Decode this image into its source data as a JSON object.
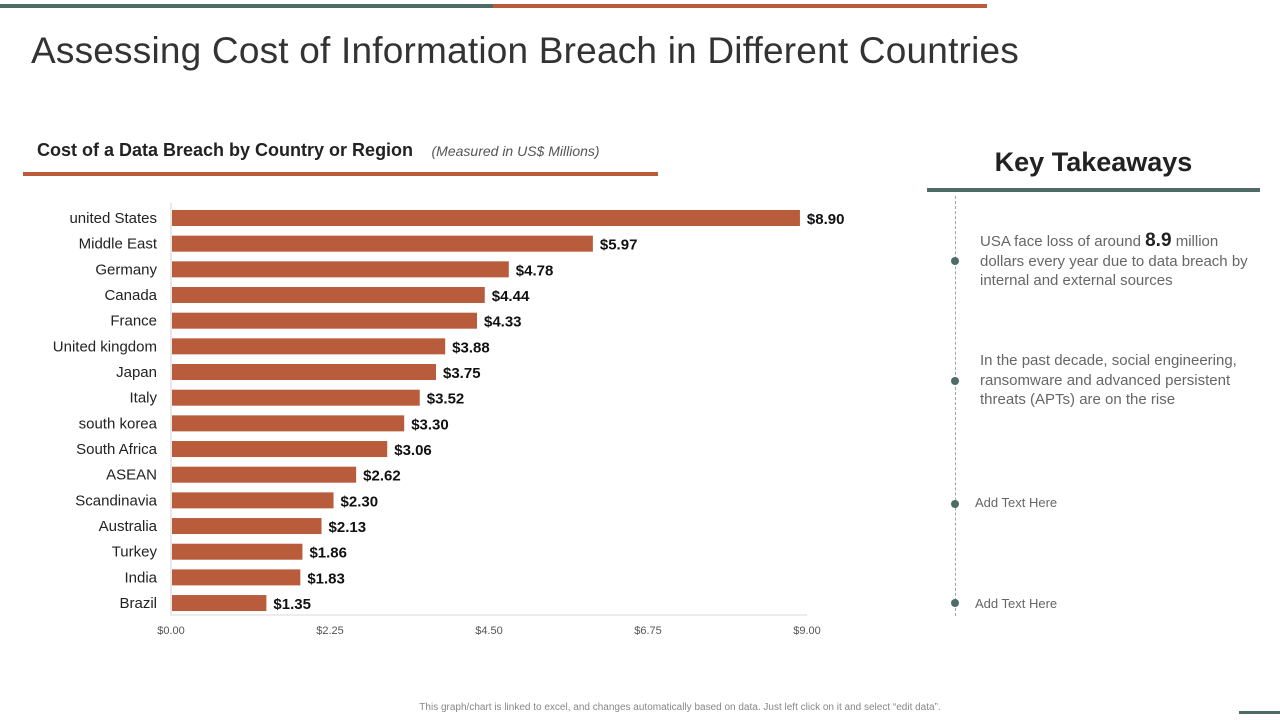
{
  "title": "Assessing Cost of Information Breach in Different Countries",
  "colors": {
    "bar": "#b85c3c",
    "accent_dark": "#4f6b66",
    "accent_orange": "#b85c3c"
  },
  "chart_header": {
    "title": "Cost of a Data Breach by Country or Region",
    "subtitle": "(Measured  in US$ Millions)"
  },
  "chart_data": {
    "type": "bar",
    "orientation": "horizontal",
    "title": "Cost of a Data Breach by Country or Region",
    "subtitle": "(Measured  in US$ Millions)",
    "categories": [
      "united States",
      "Middle East",
      "Germany",
      "Canada",
      "France",
      "United kingdom",
      "Japan",
      "Italy",
      "south korea",
      "South Africa",
      "ASEAN",
      "Scandinavia",
      "Australia",
      "Turkey",
      "India",
      "Brazil"
    ],
    "values": [
      8.9,
      5.97,
      4.78,
      4.44,
      4.33,
      3.88,
      3.75,
      3.52,
      3.3,
      3.06,
      2.62,
      2.3,
      2.13,
      1.86,
      1.83,
      1.35
    ],
    "value_labels": [
      "$8.90",
      "$5.97",
      "$4.78",
      "$4.44",
      "$4.33",
      "$3.88",
      "$3.75",
      "$3.52",
      "$3.30",
      "$3.06",
      "$2.62",
      "$2.30",
      "$2.13",
      "$1.86",
      "$1.83",
      "$1.35"
    ],
    "xlim": [
      0,
      9
    ],
    "xticks": [
      0,
      2.25,
      4.5,
      6.75,
      9
    ],
    "xtick_labels": [
      "$0.00",
      "$2.25",
      "$4.50",
      "$6.75",
      "$9.00"
    ],
    "grid": false
  },
  "key_takeaways": {
    "title": "Key Takeaways",
    "item1": {
      "prefix": "USA face loss of around ",
      "highlight": "8.9",
      "suffix": " million dollars every year due to data breach by internal and external sources"
    },
    "item2": "In the past decade, social engineering, ransomware and advanced persistent threats (APTs) are on the rise",
    "item3": "Add Text Here",
    "item4": "Add Text Here"
  },
  "footnote": "This graph/chart is linked to excel, and changes automatically based on data. Just left click on it and select “edit data”."
}
